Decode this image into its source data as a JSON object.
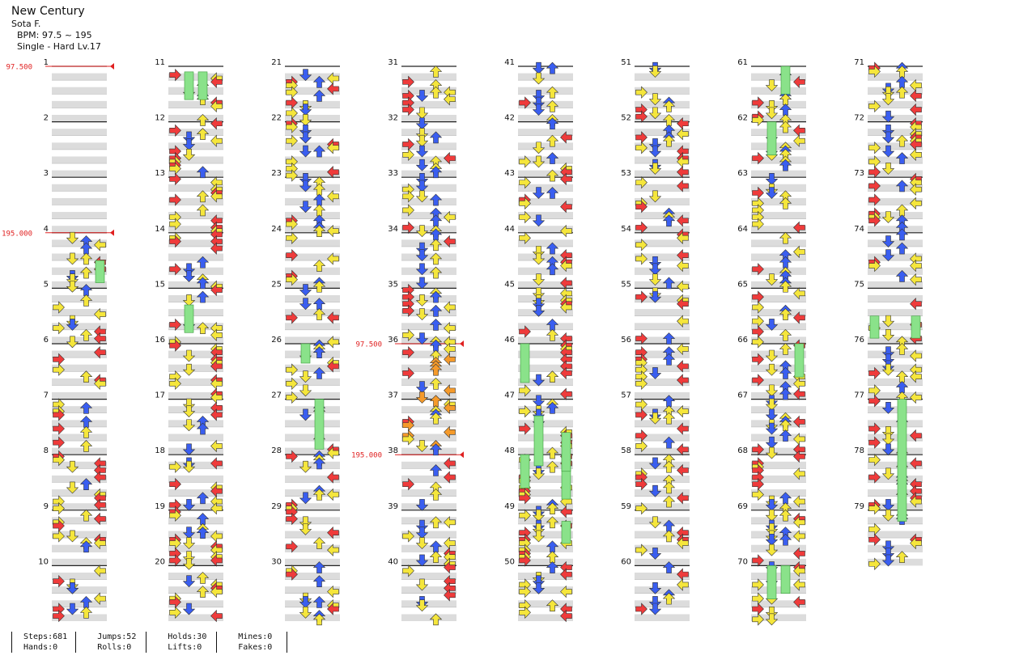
{
  "song": {
    "title": "New Century",
    "artist": "Sota F.",
    "bpm_label": "BPM: 97.5 ~ 195",
    "difficulty_label": "Single - Hard  Lv.17"
  },
  "measures": [
    "1",
    "2",
    "3",
    "4",
    "5",
    "6",
    "7",
    "8",
    "9",
    "10",
    "11",
    "12",
    "13",
    "14",
    "15",
    "16",
    "17",
    "18",
    "19",
    "20",
    "21",
    "22",
    "23",
    "24",
    "25",
    "26",
    "27",
    "28",
    "29",
    "30",
    "31",
    "32",
    "33",
    "34",
    "35",
    "36",
    "37",
    "38",
    "39",
    "40",
    "41",
    "42",
    "43",
    "44",
    "45",
    "46",
    "47",
    "48",
    "49",
    "50",
    "51",
    "52",
    "53",
    "54",
    "55",
    "56",
    "57",
    "58",
    "59",
    "60",
    "61",
    "62",
    "63",
    "64",
    "65",
    "66",
    "67",
    "68",
    "69",
    "70",
    "71",
    "72",
    "73",
    "74",
    "75",
    "76",
    "77",
    "78",
    "79"
  ],
  "bpm_changes": [
    {
      "label": "97.500",
      "measure": 1
    },
    {
      "label": "195.000",
      "measure": 4
    },
    {
      "label": "97.500",
      "measure": 36
    },
    {
      "label": "195.000",
      "measure": 38
    }
  ],
  "colors": {
    "left": "#ef3b3b",
    "down": "#3a5ef0",
    "up": "#3a5ef0",
    "right": "#ef3b3b",
    "eighth": "#f5e63c",
    "sixteenth": "#f59a2a",
    "hold": "#8ae28a",
    "bpm": "#e02020",
    "band": "#dcdcdc"
  },
  "arrow_icons": [
    "arrow-left-icon",
    "arrow-down-icon",
    "arrow-up-icon",
    "arrow-right-icon"
  ],
  "stats": [
    {
      "a": "Steps:681",
      "b": "Hands:0"
    },
    {
      "a": "Jumps:52",
      "b": "Rolls:0"
    },
    {
      "a": "Holds:30",
      "b": "Lifts:0"
    },
    {
      "a": "Mines:0",
      "b": "Fakes:0"
    }
  ]
}
